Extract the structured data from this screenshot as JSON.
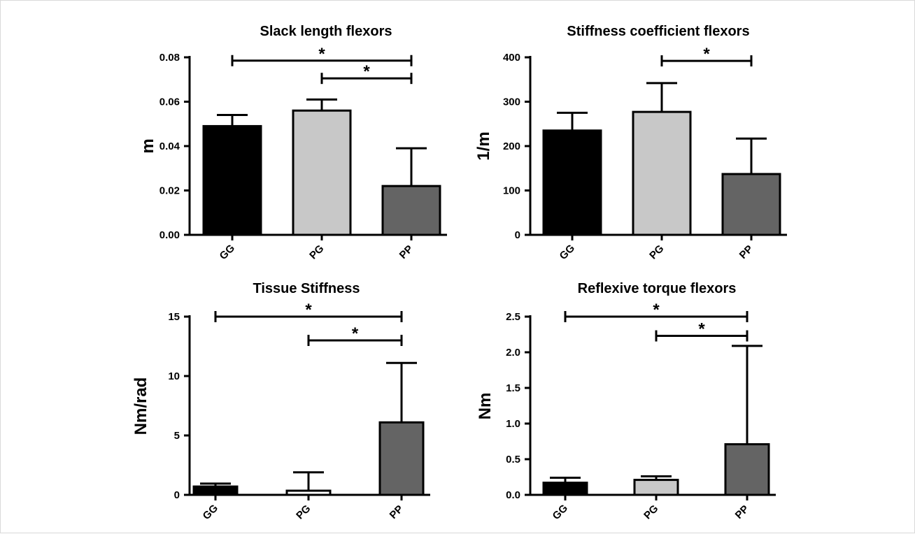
{
  "chart_data": [
    {
      "type": "bar",
      "title": "Slack length flexors",
      "xlabel": "",
      "ylabel": "m",
      "categories": [
        "GG",
        "PG",
        "PP"
      ],
      "values": [
        0.049,
        0.056,
        0.022
      ],
      "error": [
        0.005,
        0.005,
        0.017
      ],
      "colors": [
        "#000000",
        "#c8c8c8",
        "#646464"
      ],
      "ylim": [
        0,
        0.08
      ],
      "yticks": [
        0.0,
        0.02,
        0.04,
        0.06,
        0.08
      ],
      "ytick_labels": [
        "0.00",
        "0.02",
        "0.04",
        "0.06",
        "0.08"
      ],
      "significance": [
        {
          "from": "GG",
          "to": "PP",
          "y": 0.0785,
          "label": "*"
        },
        {
          "from": "PG",
          "to": "PP",
          "y": 0.0705,
          "label": "*"
        }
      ]
    },
    {
      "type": "bar",
      "title": "Stiffness coefficient flexors",
      "xlabel": "",
      "ylabel": "1/m",
      "categories": [
        "GG",
        "PG",
        "PP"
      ],
      "values": [
        235,
        277,
        137
      ],
      "error": [
        40,
        65,
        80
      ],
      "colors": [
        "#000000",
        "#c8c8c8",
        "#646464"
      ],
      "ylim": [
        0,
        400
      ],
      "yticks": [
        0,
        100,
        200,
        300,
        400
      ],
      "ytick_labels": [
        "0",
        "100",
        "200",
        "300",
        "400"
      ],
      "significance": [
        {
          "from": "PG",
          "to": "PP",
          "y": 392,
          "label": "*"
        }
      ]
    },
    {
      "type": "bar",
      "title": "Tissue Stiffness",
      "xlabel": "",
      "ylabel": "Nm/rad",
      "categories": [
        "GG",
        "PG",
        "PP"
      ],
      "values": [
        0.7,
        0.35,
        6.1
      ],
      "error": [
        0.25,
        1.55,
        5.0
      ],
      "colors": [
        "#000000",
        "#ffffff",
        "#646464"
      ],
      "ylim": [
        0,
        15
      ],
      "yticks": [
        0,
        5,
        10,
        15
      ],
      "ytick_labels": [
        "0",
        "5",
        "10",
        "15"
      ],
      "significance": [
        {
          "from": "GG",
          "to": "PP",
          "y": 15.0,
          "label": "*"
        },
        {
          "from": "PG",
          "to": "PP",
          "y": 13.0,
          "label": "*"
        }
      ]
    },
    {
      "type": "bar",
      "title": "Reflexive torque flexors",
      "xlabel": "",
      "ylabel": "Nm",
      "categories": [
        "GG",
        "PG",
        "PP"
      ],
      "values": [
        0.17,
        0.21,
        0.71
      ],
      "error": [
        0.07,
        0.05,
        1.38
      ],
      "colors": [
        "#000000",
        "#c8c8c8",
        "#646464"
      ],
      "ylim": [
        0,
        2.5
      ],
      "yticks": [
        0,
        0.5,
        1.0,
        1.5,
        2.0,
        2.5
      ],
      "ytick_labels": [
        "0.0",
        "0.5",
        "1.0",
        "1.5",
        "2.0",
        "2.5"
      ],
      "significance": [
        {
          "from": "GG",
          "to": "PP",
          "y": 2.5,
          "label": "*"
        },
        {
          "from": "PG",
          "to": "PP",
          "y": 2.23,
          "label": "*"
        }
      ]
    }
  ]
}
